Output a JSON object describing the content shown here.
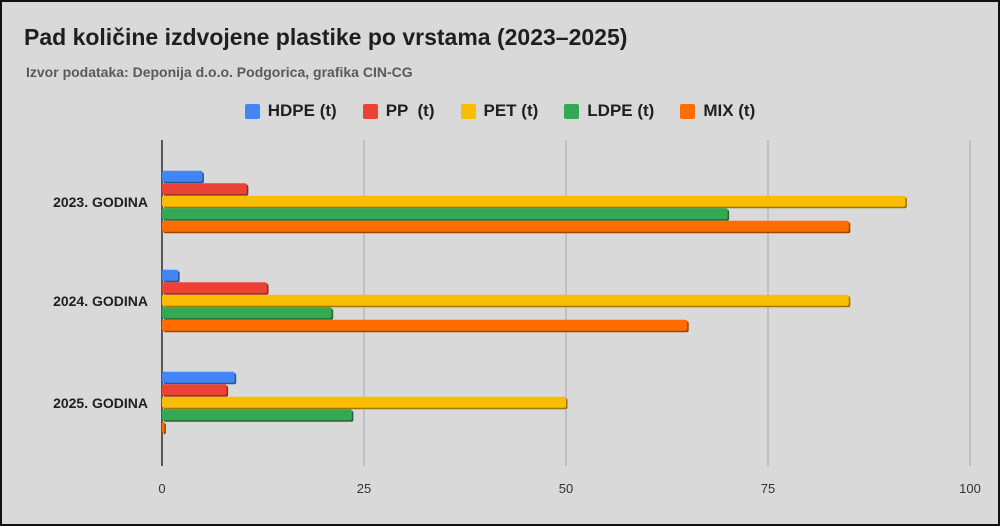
{
  "chart_data": {
    "type": "bar",
    "orientation": "horizontal",
    "title": "Pad količine izdvojene plastike po vrstama (2023–2025)",
    "subtitle": "Izvor podataka: Deponija d.o.o. Podgorica, grafika CIN-CG",
    "categories": [
      "2023. GODINA",
      "2024. GODINA",
      "2025. GODINA"
    ],
    "series": [
      {
        "name": "HDPE (t)",
        "color": "#4285f4",
        "values": [
          5,
          2,
          9
        ]
      },
      {
        "name": "PP  (t)",
        "color": "#ea4335",
        "values": [
          10.5,
          13,
          8
        ]
      },
      {
        "name": "PET (t)",
        "color": "#fbbc04",
        "values": [
          92,
          85,
          50
        ]
      },
      {
        "name": "LDPE (t)",
        "color": "#34a853",
        "values": [
          70,
          21,
          23.5
        ]
      },
      {
        "name": "MIX (t)",
        "color": "#ff6d01",
        "values": [
          85,
          65,
          0.3
        ]
      }
    ],
    "xlim": [
      0,
      100
    ],
    "xticks": [
      0,
      25,
      50,
      75,
      100
    ],
    "xlabel": "",
    "ylabel": "",
    "grid": true,
    "legend_position": "top"
  }
}
